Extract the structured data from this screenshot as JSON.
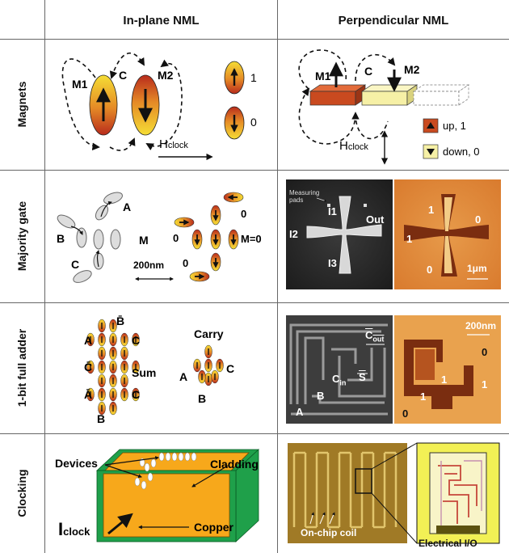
{
  "headers": {
    "col1": "In-plane NML",
    "col2": "Perpendicular NML"
  },
  "rows": {
    "magnets": "Magnets",
    "majority": "Majority gate",
    "adder": "1-bit full adder",
    "clocking": "Clocking"
  },
  "magnets_inplane": {
    "m1": "M1",
    "c": "C",
    "m2": "M2",
    "hclock_main": "H",
    "hclock_sub": "clock",
    "legend_one": "1",
    "legend_zero": "0"
  },
  "magnets_perp": {
    "m1": "M1",
    "c": "C",
    "m2": "M2",
    "hclock_main": "H",
    "hclock_sub": "clock",
    "legend_up": "up, 1",
    "legend_down": "down, 0"
  },
  "majority_inplane": {
    "a": "A",
    "b": "B",
    "c": "C",
    "m": "M",
    "scale": "200nm",
    "out_zero_top": "0",
    "out_zero_left": "0",
    "out_zero_bottom": "0",
    "out_m": "M=0"
  },
  "majority_perp": {
    "pads": "Measuring pads",
    "i1": "I1",
    "i2": "I2",
    "i3": "I3",
    "out": "Out",
    "mfm_one_top": "1",
    "mfm_zero_right": "0",
    "mfm_one_left": "1",
    "mfm_zero_bottom": "0",
    "scale": "1μm"
  },
  "adder_inplane": {
    "bbar": "B̄",
    "a": "A",
    "c1": "C",
    "cbar": "C̄",
    "sum": "Sum",
    "abar": "Ā",
    "c2": "C",
    "b": "B",
    "carry": "Carry",
    "ca": "A",
    "cc": "C",
    "cb": "B"
  },
  "adder_perp": {
    "cout": "C",
    "cout_sub": "out",
    "cin": "C",
    "cin_sub": "in",
    "s": "S",
    "a": "A",
    "b": "B",
    "scale": "200nm",
    "v0_top": "0",
    "v1_mid": "1",
    "v1_left": "1",
    "v1_right": "1",
    "v0_bottom": "0"
  },
  "clocking_inplane": {
    "devices": "Devices",
    "cladding": "Cladding",
    "copper": "Copper",
    "iclock_main": "I",
    "iclock_sub": "clock"
  },
  "clocking_perp": {
    "coil": "On-chip coil",
    "io": "Electrical I/O"
  },
  "colors": {
    "magnet_top": "#f2d531",
    "magnet_bottom": "#c0301d",
    "slab_red": "#c94a1f",
    "slab_yellow": "#f6f0a6",
    "copper": "#f7a81b",
    "cladding": "#1fa04a",
    "chip_gold": "#a07a26"
  }
}
